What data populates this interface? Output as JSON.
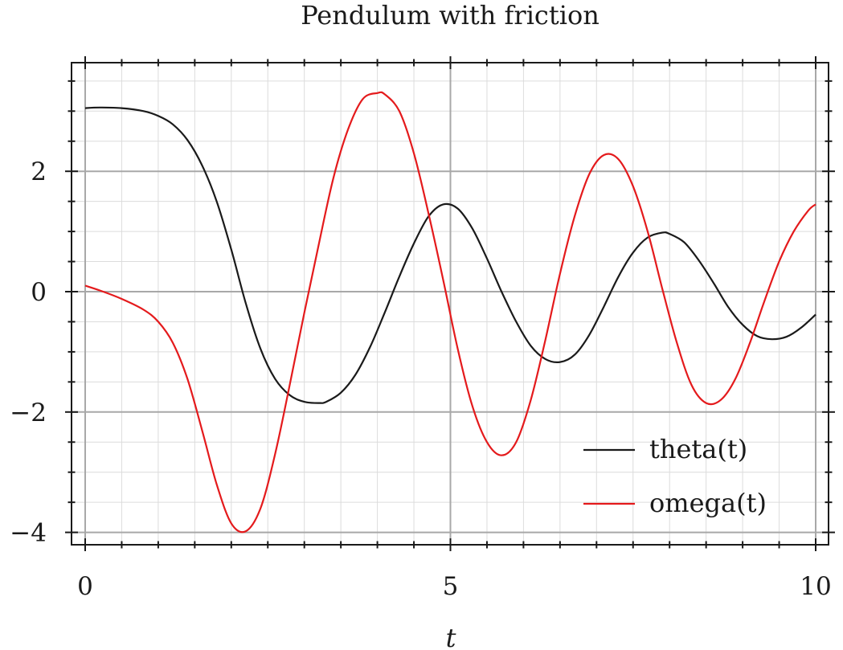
{
  "chart_data": {
    "type": "line",
    "title": "Pendulum with friction",
    "xlabel": "t",
    "ylabel": "",
    "xlim": [
      0,
      10
    ],
    "ylim": [
      -4.2,
      3.6
    ],
    "xticks": [
      0,
      5,
      10
    ],
    "xtick_labels": [
      "0",
      "5",
      "10"
    ],
    "yticks": [
      -4,
      -2,
      0,
      2
    ],
    "ytick_labels": [
      "−4",
      "−2",
      "0",
      "2"
    ],
    "grid": true,
    "legend_position": "bottom-right",
    "series": [
      {
        "name": "theta(t)",
        "color": "#1a1a1a",
        "x": [
          0,
          0.2,
          0.5,
          0.8,
          1.0,
          1.2,
          1.4,
          1.6,
          1.8,
          2.0,
          2.2,
          2.4,
          2.6,
          2.8,
          3.0,
          3.2,
          3.3,
          3.5,
          3.7,
          3.9,
          4.1,
          4.3,
          4.5,
          4.7,
          4.9,
          5.1,
          5.3,
          5.5,
          5.7,
          5.9,
          6.1,
          6.3,
          6.5,
          6.7,
          6.9,
          7.1,
          7.3,
          7.5,
          7.7,
          7.9,
          8.0,
          8.2,
          8.4,
          8.6,
          8.8,
          9.0,
          9.2,
          9.4,
          9.6,
          9.8,
          10.0
        ],
        "values": [
          3.05,
          3.06,
          3.05,
          3.0,
          2.92,
          2.78,
          2.52,
          2.1,
          1.5,
          0.7,
          -0.2,
          -0.95,
          -1.45,
          -1.72,
          -1.83,
          -1.85,
          -1.83,
          -1.68,
          -1.38,
          -0.92,
          -0.35,
          0.25,
          0.8,
          1.25,
          1.45,
          1.38,
          1.05,
          0.55,
          0.0,
          -0.5,
          -0.9,
          -1.12,
          -1.17,
          -1.05,
          -0.72,
          -0.25,
          0.25,
          0.65,
          0.9,
          0.98,
          0.96,
          0.82,
          0.52,
          0.15,
          -0.25,
          -0.55,
          -0.74,
          -0.79,
          -0.75,
          -0.6,
          -0.38
        ]
      },
      {
        "name": "omega(t)",
        "color": "#e41a1c",
        "x": [
          0,
          0.2,
          0.5,
          0.8,
          1.0,
          1.2,
          1.4,
          1.6,
          1.8,
          2.0,
          2.2,
          2.4,
          2.6,
          2.8,
          3.0,
          3.2,
          3.4,
          3.6,
          3.8,
          4.0,
          4.1,
          4.3,
          4.5,
          4.7,
          4.9,
          5.1,
          5.3,
          5.5,
          5.7,
          5.9,
          6.1,
          6.3,
          6.5,
          6.7,
          6.9,
          7.1,
          7.3,
          7.5,
          7.7,
          7.9,
          8.1,
          8.3,
          8.5,
          8.7,
          8.9,
          9.1,
          9.3,
          9.5,
          9.7,
          9.9,
          10.0
        ],
        "values": [
          0.1,
          0.02,
          -0.12,
          -0.3,
          -0.5,
          -0.85,
          -1.45,
          -2.3,
          -3.2,
          -3.85,
          -3.98,
          -3.6,
          -2.7,
          -1.55,
          -0.35,
          0.8,
          1.9,
          2.7,
          3.2,
          3.3,
          3.28,
          3.0,
          2.3,
          1.3,
          0.2,
          -0.95,
          -1.9,
          -2.5,
          -2.72,
          -2.5,
          -1.8,
          -0.8,
          0.3,
          1.25,
          1.95,
          2.27,
          2.2,
          1.75,
          1.0,
          0.05,
          -0.85,
          -1.55,
          -1.85,
          -1.8,
          -1.45,
          -0.85,
          -0.15,
          0.5,
          1.0,
          1.35,
          1.45
        ]
      }
    ]
  }
}
